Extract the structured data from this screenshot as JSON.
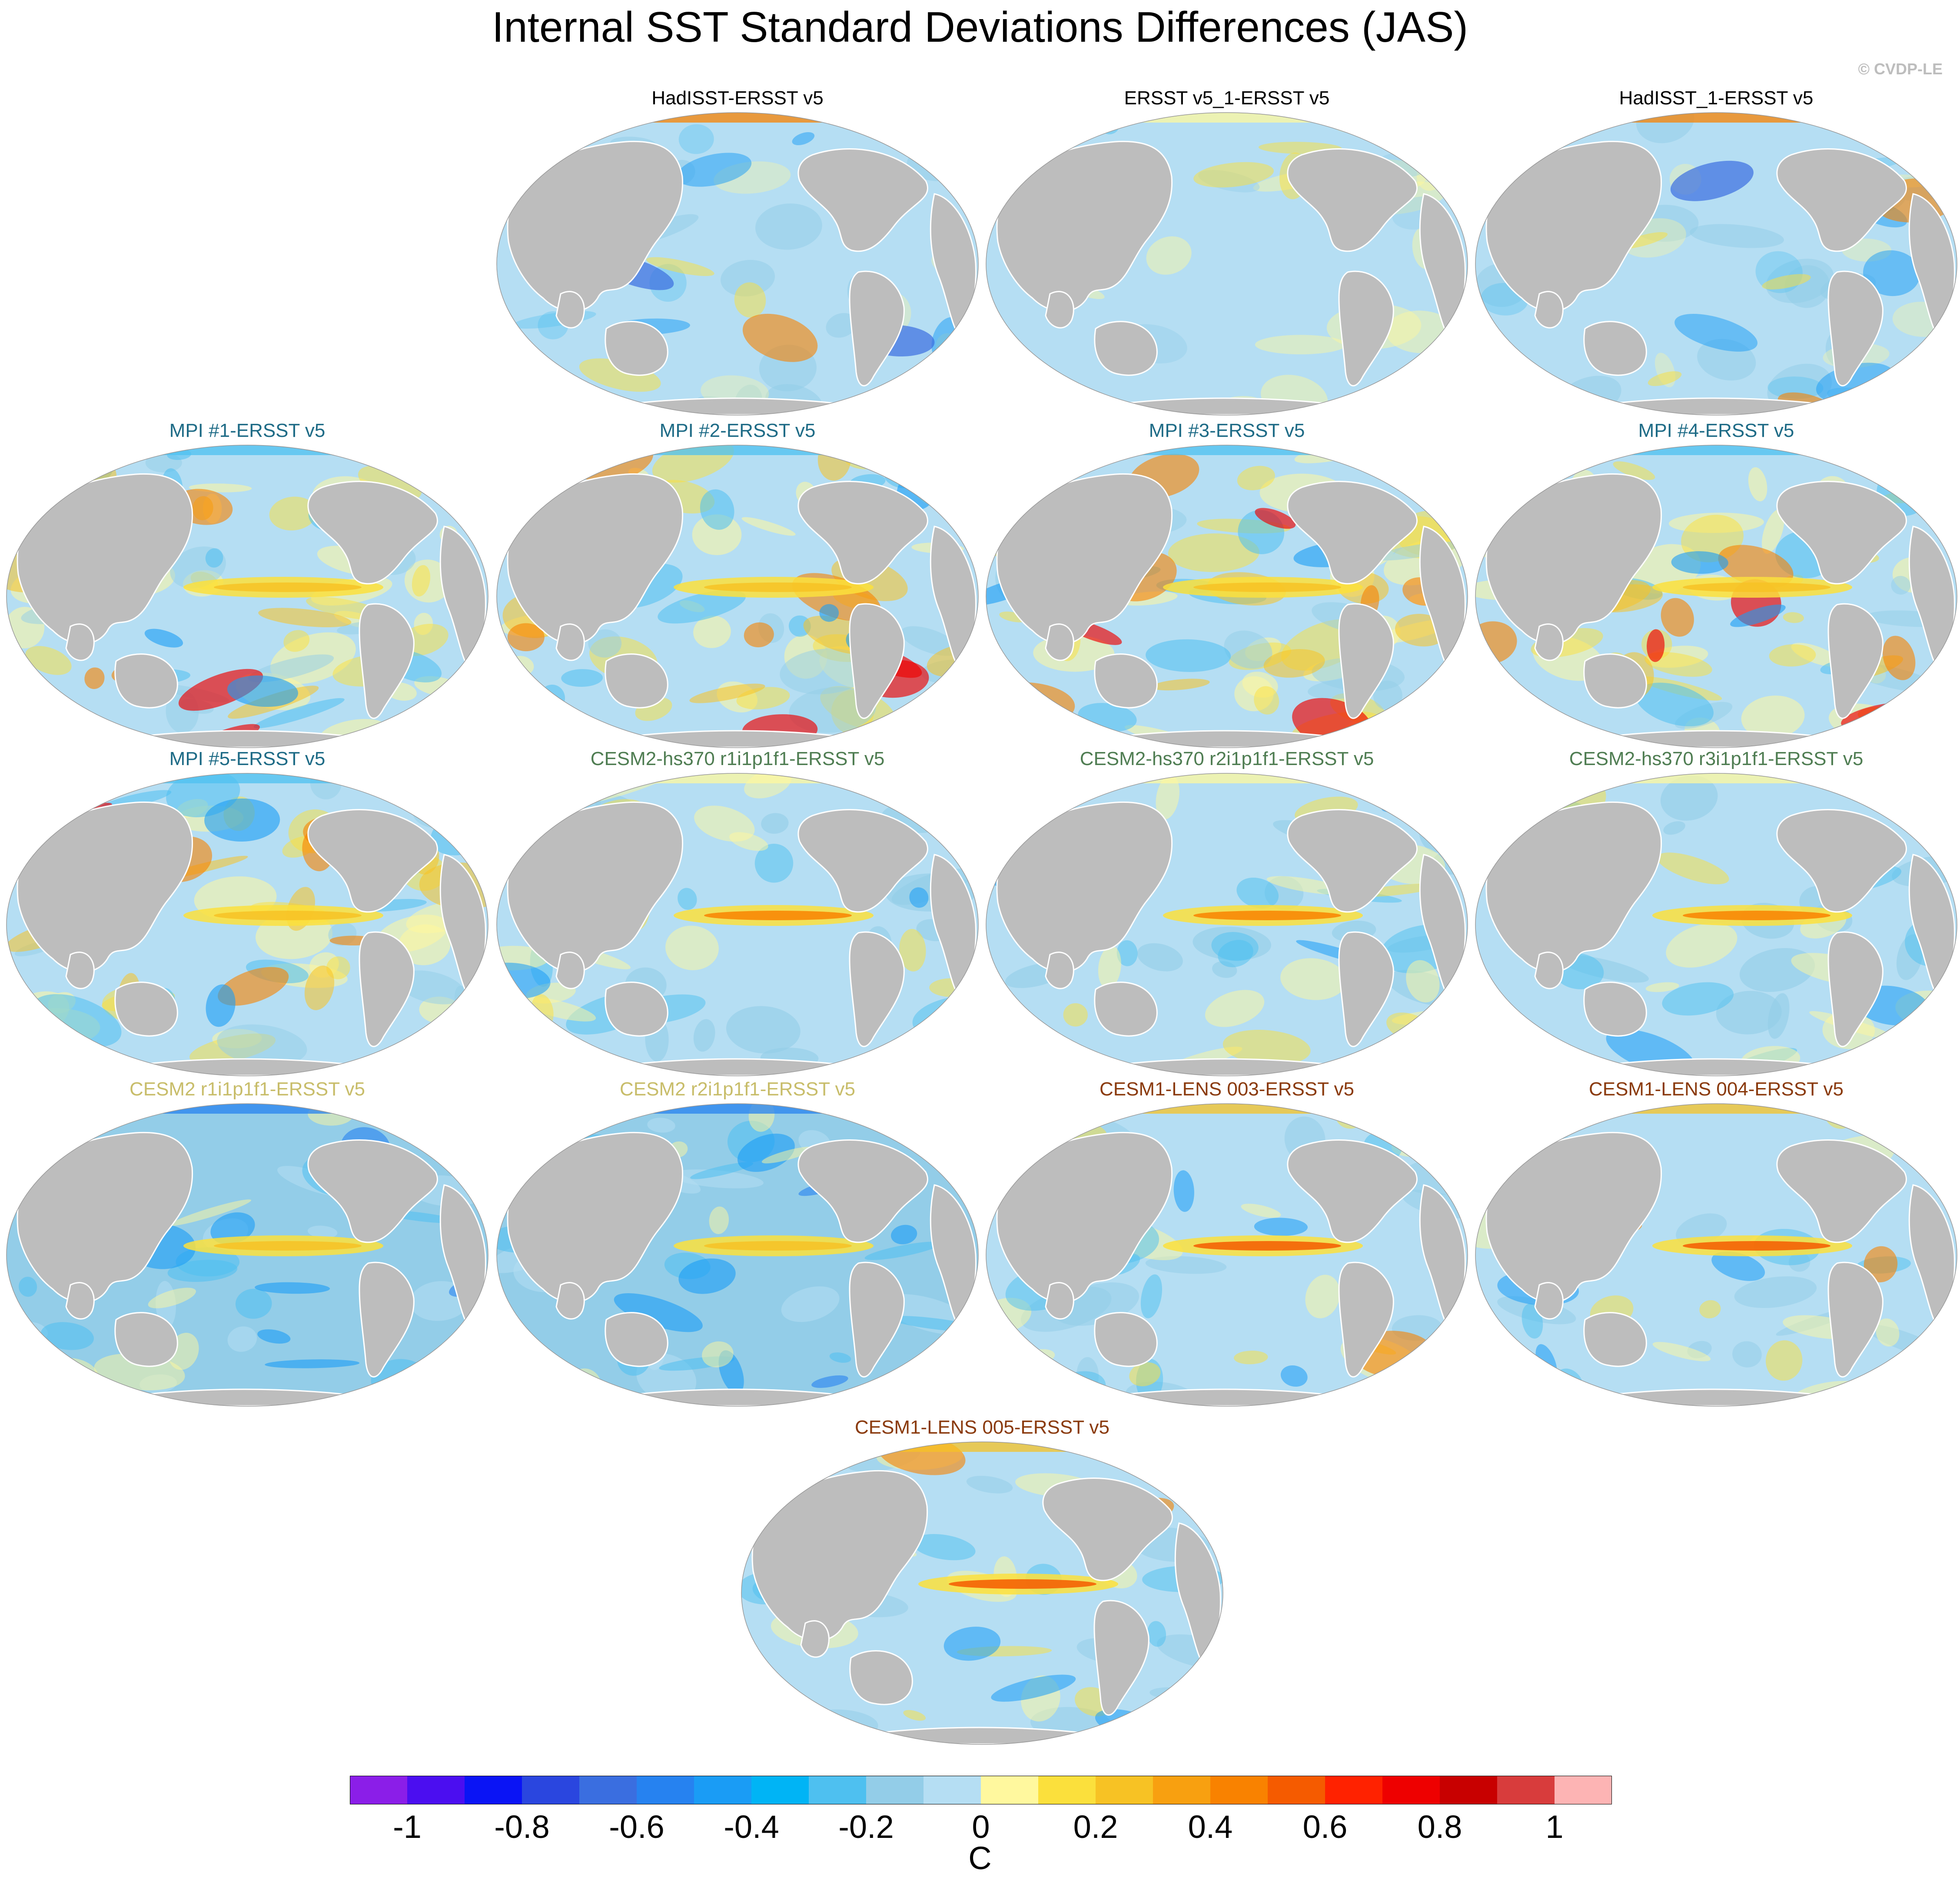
{
  "title": "Internal SST Standard Deviations Differences (JAS)",
  "copyright": "© CVDP-LE",
  "panels": [
    {
      "title": "HadISST-ERSST v5",
      "title_color": "#000000",
      "style": "obs1"
    },
    {
      "title": "ERSST v5_1-ERSST v5",
      "title_color": "#000000",
      "style": "obs2"
    },
    {
      "title": "HadISST_1-ERSST v5",
      "title_color": "#000000",
      "style": "obs1"
    },
    {
      "title": "MPI #1-ERSST v5",
      "title_color": "#1e6b86",
      "style": "mpi"
    },
    {
      "title": "MPI #2-ERSST v5",
      "title_color": "#1e6b86",
      "style": "mpi"
    },
    {
      "title": "MPI #3-ERSST v5",
      "title_color": "#1e6b86",
      "style": "mpi"
    },
    {
      "title": "MPI #4-ERSST v5",
      "title_color": "#1e6b86",
      "style": "mpi"
    },
    {
      "title": "MPI #5-ERSST v5",
      "title_color": "#1e6b86",
      "style": "mpi"
    },
    {
      "title": "CESM2-hs370 r1i1p1f1-ERSST v5",
      "title_color": "#4f7d52",
      "style": "cesm2hs"
    },
    {
      "title": "CESM2-hs370 r2i1p1f1-ERSST v5",
      "title_color": "#4f7d52",
      "style": "cesm2hs"
    },
    {
      "title": "CESM2-hs370 r3i1p1f1-ERSST v5",
      "title_color": "#4f7d52",
      "style": "cesm2hs"
    },
    {
      "title": "CESM2 r1i1p1f1-ERSST v5",
      "title_color": "#c8bd6a",
      "style": "cesm2"
    },
    {
      "title": "CESM2 r2i1p1f1-ERSST v5",
      "title_color": "#c8bd6a",
      "style": "cesm2"
    },
    {
      "title": "CESM1-LENS 003-ERSST v5",
      "title_color": "#8a3a0c",
      "style": "cesm1"
    },
    {
      "title": "CESM1-LENS 004-ERSST v5",
      "title_color": "#8a3a0c",
      "style": "cesm1"
    },
    {
      "title": "CESM1-LENS 005-ERSST v5",
      "title_color": "#8a3a0c",
      "style": "cesm1"
    }
  ],
  "colorbar": {
    "units": "C",
    "range": [
      -1.1,
      1.1
    ],
    "colors": [
      "#8b1ee8",
      "#4b0ef0",
      "#0a14f5",
      "#2a46df",
      "#3a6ee0",
      "#2682f0",
      "#1a9cf5",
      "#00b4f5",
      "#4ec0f0",
      "#93cde8",
      "#b5def3",
      "#fff89e",
      "#fbe03c",
      "#f7c224",
      "#f8a010",
      "#f98200",
      "#f55b00",
      "#ff2200",
      "#ee0000",
      "#c80000",
      "#d83c3c",
      "#fdb4b4"
    ],
    "ticks": [
      "-1",
      "-0.8",
      "-0.6",
      "-0.4",
      "-0.2",
      "0",
      "0.2",
      "0.4",
      "0.6",
      "0.8",
      "1"
    ]
  }
}
